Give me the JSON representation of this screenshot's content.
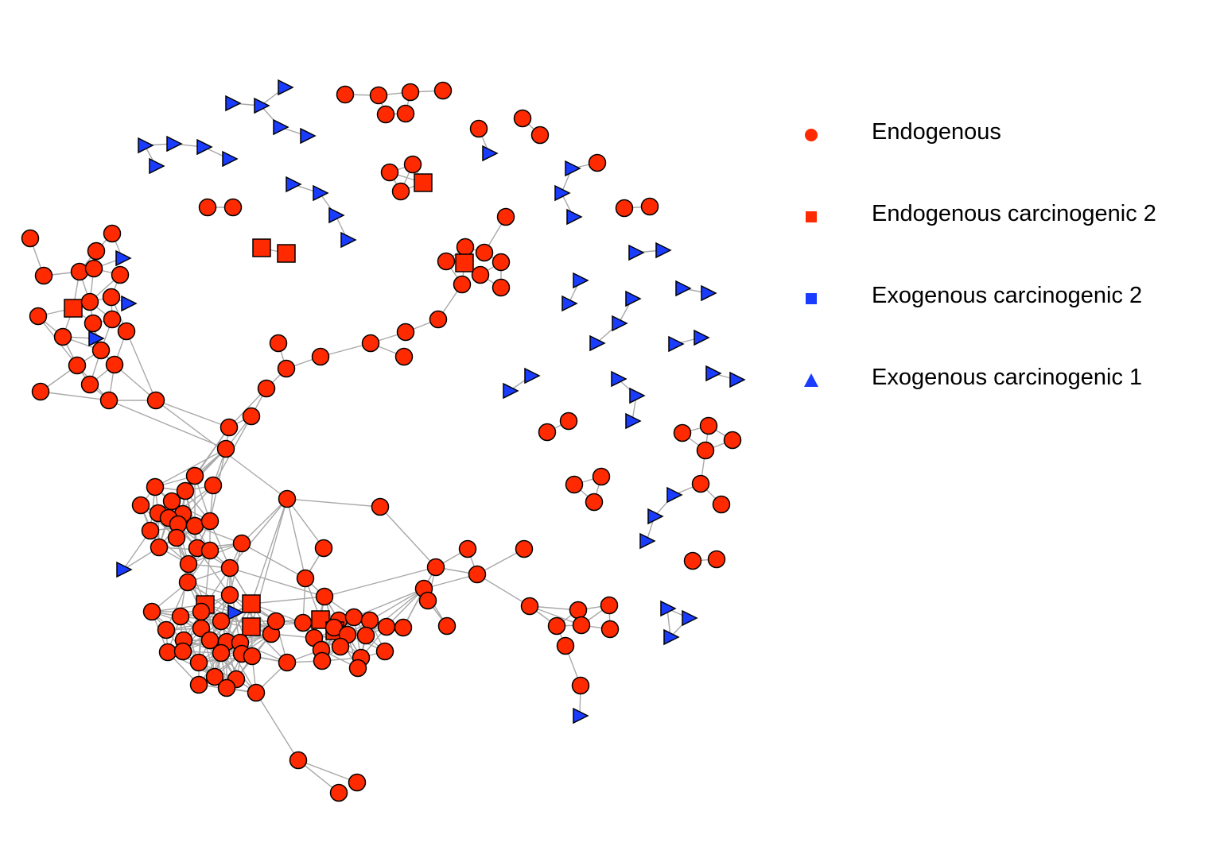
{
  "colors": {
    "endogenous": "#ff2a00",
    "exogenous": "#1a3cff",
    "edge": "#a8a8a8"
  },
  "legend": {
    "items": [
      {
        "label": "Endogenous",
        "shape": "circle",
        "color": "#ff2a00"
      },
      {
        "label": "Endogenous carcinogenic 2",
        "shape": "square",
        "color": "#ff2a00"
      },
      {
        "label": "Exogenous carcinogenic 2",
        "shape": "square",
        "color": "#1a3cff"
      },
      {
        "label": "Exogenous carcinogenic 1",
        "shape": "triangle",
        "color": "#1a3cff"
      }
    ]
  }
}
